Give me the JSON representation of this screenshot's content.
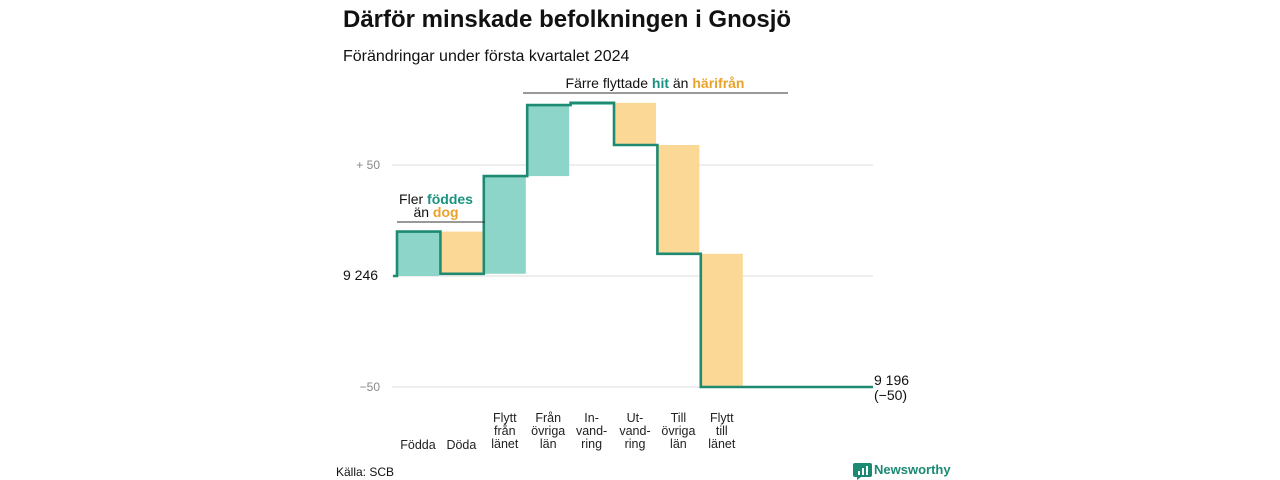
{
  "title": "Därför minskade befolkningen i Gnosjö",
  "subtitle": "Förändringar under första kvartalet 2024",
  "source": "Källa: SCB",
  "brand": "Newsworthy",
  "colors": {
    "increase": "#8dd5c8",
    "decrease": "#fcd896",
    "line": "#1e8a72",
    "accent_text_green": "#1a9280",
    "accent_text_orange": "#eaa22a",
    "grid": "#dddddd"
  },
  "chart_data": {
    "type": "waterfall",
    "start": {
      "value": 9246,
      "label": "9 246"
    },
    "end": {
      "value": 9196,
      "label": "9 196",
      "change_label": "(−50)"
    },
    "ylim": [
      -50,
      50
    ],
    "yticks": [
      {
        "value": 50,
        "label": "+ 50"
      },
      {
        "value": 0,
        "label": ""
      },
      {
        "value": -50,
        "label": "−50"
      }
    ],
    "grid": true,
    "steps": [
      {
        "label_lines": [
          "Födda"
        ],
        "change": 20,
        "type": "increase"
      },
      {
        "label_lines": [
          "Döda"
        ],
        "change": -19,
        "type": "decrease"
      },
      {
        "label_lines": [
          "Flytt",
          "från",
          "länet"
        ],
        "change": 44,
        "type": "increase"
      },
      {
        "label_lines": [
          "Från",
          "övriga",
          "län"
        ],
        "change": 32,
        "type": "increase"
      },
      {
        "label_lines": [
          "In-",
          "vand-",
          "ring"
        ],
        "change": 1,
        "type": "increase"
      },
      {
        "label_lines": [
          "Ut-",
          "vand-",
          "ring"
        ],
        "change": -19,
        "type": "decrease"
      },
      {
        "label_lines": [
          "Till",
          "övriga",
          "län"
        ],
        "change": -49,
        "type": "decrease"
      },
      {
        "label_lines": [
          "Flytt",
          "till",
          "länet"
        ],
        "change": -60,
        "type": "decrease"
      }
    ],
    "annotations": [
      {
        "lines": [
          [
            {
              "text": "Fler ",
              "style": "plain"
            },
            {
              "text": "föddes",
              "style": "green"
            }
          ],
          [
            {
              "text": "än ",
              "style": "plain"
            },
            {
              "text": "dog",
              "style": "orange"
            }
          ]
        ]
      },
      {
        "lines": [
          [
            {
              "text": "Färre flyttade ",
              "style": "plain"
            },
            {
              "text": "hit",
              "style": "green"
            },
            {
              "text": " än ",
              "style": "plain"
            },
            {
              "text": "härifrån",
              "style": "orange"
            }
          ]
        ]
      }
    ]
  }
}
